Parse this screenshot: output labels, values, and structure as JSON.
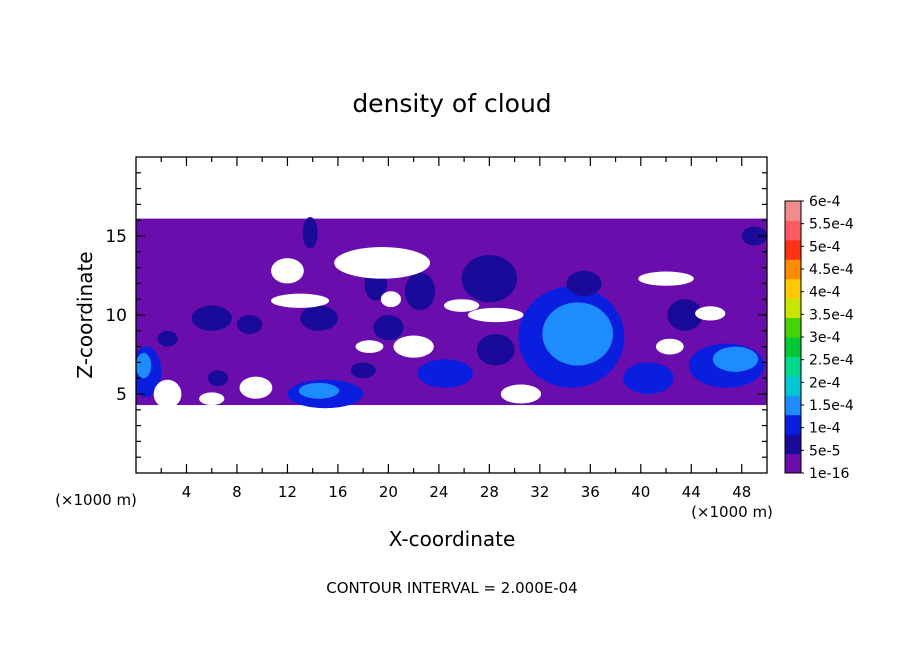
{
  "chart_data": {
    "type": "heatmap",
    "title": "density of cloud",
    "xlabel": "X-coordinate",
    "ylabel": "Z-coordinate",
    "x_unit": "(×1000 m)",
    "y_unit": "(×1000 m)",
    "xlim": [
      0,
      50
    ],
    "ylim": [
      0,
      20
    ],
    "x_ticks": [
      4,
      8,
      12,
      16,
      20,
      24,
      28,
      32,
      36,
      40,
      44,
      48
    ],
    "y_ticks": [
      5,
      10,
      15
    ],
    "footer": "CONTOUR INTERVAL = 2.000E-04",
    "colorbar": {
      "levels": [
        "1e-16",
        "5e-5",
        "1e-4",
        "1.5e-4",
        "2e-4",
        "2.5e-4",
        "3e-4",
        "3.5e-4",
        "4e-4",
        "4.5e-4",
        "5e-4",
        "5.5e-4",
        "6e-4"
      ],
      "colors": [
        "#6a0dad",
        "#1a0a9a",
        "#0a1ee0",
        "#1e8cff",
        "#00c8d2",
        "#00d88c",
        "#00c832",
        "#46d200",
        "#c8e600",
        "#ffc800",
        "#ff8c00",
        "#ff3214",
        "#ff5a64",
        "#f08c8c"
      ]
    },
    "data_extent": {
      "x_range": [
        0,
        50
      ],
      "z_range": [
        4.3,
        16.1
      ]
    },
    "blobs": [
      {
        "x": 0.8,
        "z": 6.4,
        "rx": 1.2,
        "rz": 1.6,
        "level": 2
      },
      {
        "x": 0.6,
        "z": 6.8,
        "rx": 0.6,
        "rz": 0.8,
        "level": 3
      },
      {
        "x": 15.0,
        "z": 5.0,
        "rx": 3.0,
        "rz": 0.9,
        "level": 2
      },
      {
        "x": 14.5,
        "z": 5.2,
        "rx": 1.6,
        "rz": 0.5,
        "level": 3
      },
      {
        "x": 34.5,
        "z": 8.6,
        "rx": 4.2,
        "rz": 3.2,
        "level": 2
      },
      {
        "x": 35.0,
        "z": 8.8,
        "rx": 2.8,
        "rz": 2.0,
        "level": 3
      },
      {
        "x": 35.5,
        "z": 8.4,
        "rx": 1.2,
        "rz": 1.0,
        "level": 3
      },
      {
        "x": 46.8,
        "z": 6.8,
        "rx": 3.0,
        "rz": 1.4,
        "level": 2
      },
      {
        "x": 47.5,
        "z": 7.2,
        "rx": 1.8,
        "rz": 0.8,
        "level": 3
      },
      {
        "x": 40.6,
        "z": 6.0,
        "rx": 2.0,
        "rz": 1.0,
        "level": 2
      },
      {
        "x": 24.5,
        "z": 6.3,
        "rx": 2.2,
        "rz": 0.9,
        "level": 2
      },
      {
        "x": 28.0,
        "z": 12.3,
        "rx": 2.2,
        "rz": 1.5,
        "level": 1
      },
      {
        "x": 22.5,
        "z": 11.5,
        "rx": 1.2,
        "rz": 1.2,
        "level": 1
      },
      {
        "x": 19.0,
        "z": 12.0,
        "rx": 0.9,
        "rz": 1.1,
        "level": 1
      },
      {
        "x": 14.5,
        "z": 9.8,
        "rx": 1.5,
        "rz": 0.8,
        "level": 1
      },
      {
        "x": 6.0,
        "z": 9.8,
        "rx": 1.6,
        "rz": 0.8,
        "level": 1
      },
      {
        "x": 9.0,
        "z": 9.4,
        "rx": 1.0,
        "rz": 0.6,
        "level": 1
      },
      {
        "x": 20.0,
        "z": 9.2,
        "rx": 1.2,
        "rz": 0.8,
        "level": 1
      },
      {
        "x": 28.5,
        "z": 7.8,
        "rx": 1.5,
        "rz": 1.0,
        "level": 1
      },
      {
        "x": 43.5,
        "z": 10.0,
        "rx": 1.4,
        "rz": 1.0,
        "level": 1
      },
      {
        "x": 35.5,
        "z": 12.0,
        "rx": 1.4,
        "rz": 0.8,
        "level": 1
      },
      {
        "x": 49.0,
        "z": 15.0,
        "rx": 1.0,
        "rz": 0.6,
        "level": 1
      },
      {
        "x": 13.8,
        "z": 15.2,
        "rx": 0.6,
        "rz": 1.0,
        "level": 1
      },
      {
        "x": 6.5,
        "z": 6.0,
        "rx": 0.8,
        "rz": 0.5,
        "level": 1
      },
      {
        "x": 18.0,
        "z": 6.5,
        "rx": 1.0,
        "rz": 0.5,
        "level": 1
      },
      {
        "x": 2.5,
        "z": 8.5,
        "rx": 0.8,
        "rz": 0.5,
        "level": 1
      }
    ],
    "holes": [
      {
        "x": 19.5,
        "z": 13.3,
        "rx": 3.8,
        "rz": 1.0
      },
      {
        "x": 12.0,
        "z": 12.8,
        "rx": 1.3,
        "rz": 0.8
      },
      {
        "x": 28.5,
        "z": 10.0,
        "rx": 2.2,
        "rz": 0.45
      },
      {
        "x": 42.0,
        "z": 12.3,
        "rx": 2.2,
        "rz": 0.45
      },
      {
        "x": 42.3,
        "z": 8.0,
        "rx": 1.1,
        "rz": 0.5
      },
      {
        "x": 45.5,
        "z": 10.1,
        "rx": 1.2,
        "rz": 0.45
      },
      {
        "x": 18.5,
        "z": 8.0,
        "rx": 1.1,
        "rz": 0.4
      },
      {
        "x": 22.0,
        "z": 8.0,
        "rx": 1.6,
        "rz": 0.7
      },
      {
        "x": 2.5,
        "z": 5.0,
        "rx": 1.1,
        "rz": 0.9
      },
      {
        "x": 9.5,
        "z": 5.4,
        "rx": 1.3,
        "rz": 0.7
      },
      {
        "x": 13.0,
        "z": 10.9,
        "rx": 2.3,
        "rz": 0.45
      },
      {
        "x": 25.8,
        "z": 10.6,
        "rx": 1.4,
        "rz": 0.4
      },
      {
        "x": 6.0,
        "z": 4.7,
        "rx": 1.0,
        "rz": 0.4
      },
      {
        "x": 30.5,
        "z": 5.0,
        "rx": 1.6,
        "rz": 0.6
      },
      {
        "x": 20.2,
        "z": 11.0,
        "rx": 0.8,
        "rz": 0.5
      }
    ]
  }
}
